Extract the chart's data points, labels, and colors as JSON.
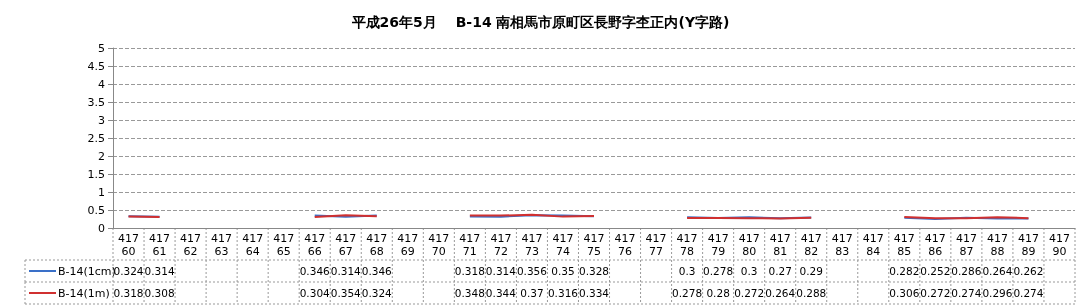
{
  "chart_data": {
    "type": "line",
    "title": "平成26年5月　 B-14 南相馬市原町区長野字杢正内(Y字路)",
    "categories": [
      "41760",
      "41761",
      "41762",
      "41763",
      "41764",
      "41765",
      "41766",
      "41767",
      "41768",
      "41769",
      "41770",
      "41771",
      "41772",
      "41773",
      "41774",
      "41775",
      "41776",
      "41777",
      "41778",
      "41779",
      "41780",
      "41781",
      "41782",
      "41783",
      "41784",
      "41785",
      "41786",
      "41787",
      "41788",
      "41789",
      "41790"
    ],
    "series": [
      {
        "name": "B-14(1cm)",
        "color": "#3a70c8",
        "values": [
          0.324,
          0.314,
          null,
          null,
          null,
          null,
          0.346,
          0.314,
          0.346,
          null,
          null,
          0.318,
          0.314,
          0.356,
          0.35,
          0.328,
          null,
          null,
          0.3,
          0.278,
          0.3,
          0.27,
          0.29,
          null,
          null,
          0.282,
          0.252,
          0.286,
          0.264,
          0.262,
          null
        ]
      },
      {
        "name": "B-14(1m)",
        "color": "#d03030",
        "values": [
          0.318,
          0.308,
          null,
          null,
          null,
          null,
          0.304,
          0.354,
          0.324,
          null,
          null,
          0.348,
          0.344,
          0.37,
          0.316,
          0.334,
          null,
          null,
          0.278,
          0.28,
          0.272,
          0.264,
          0.288,
          null,
          null,
          0.306,
          0.272,
          0.274,
          0.296,
          0.274,
          null
        ]
      }
    ],
    "ylim": [
      0,
      5
    ],
    "yticks": [
      0,
      0.5,
      1,
      1.5,
      2,
      2.5,
      3,
      3.5,
      4,
      4.5,
      5
    ],
    "grid": "y",
    "legend": "bottom",
    "marker": "none",
    "data_labels": true
  }
}
